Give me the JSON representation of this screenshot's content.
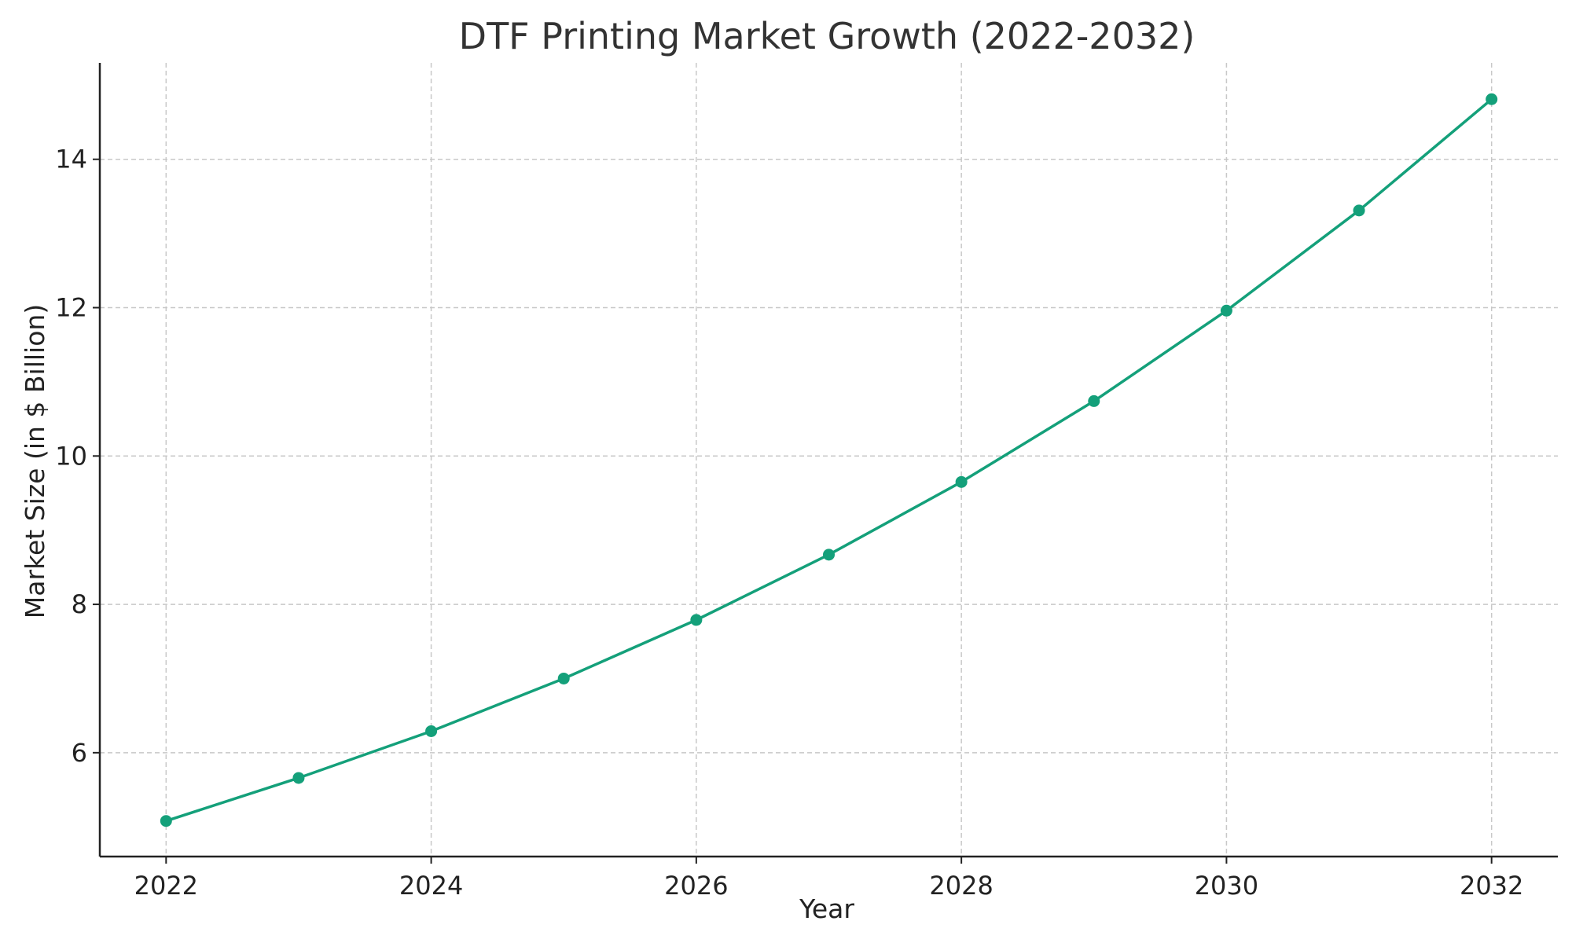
{
  "chart_data": {
    "type": "line",
    "title": "DTF Printing Market Growth (2022-2032)",
    "xlabel": "Year",
    "ylabel": "Market Size (in $ Billion)",
    "x": [
      2022,
      2023,
      2024,
      2025,
      2026,
      2027,
      2028,
      2029,
      2030,
      2031,
      2032
    ],
    "series": [
      {
        "values": [
          5.08,
          5.66,
          6.29,
          7.0,
          7.79,
          8.67,
          9.65,
          10.74,
          11.96,
          13.31,
          14.81
        ],
        "color": "#14a07a",
        "marker": "circle"
      }
    ],
    "xticks": [
      2022,
      2024,
      2026,
      2028,
      2030,
      2032
    ],
    "yticks": [
      6,
      8,
      10,
      12,
      14
    ],
    "xlim": [
      2021.5,
      2032.5
    ],
    "ylim": [
      4.6,
      15.3
    ],
    "grid": true,
    "legend": "none"
  }
}
